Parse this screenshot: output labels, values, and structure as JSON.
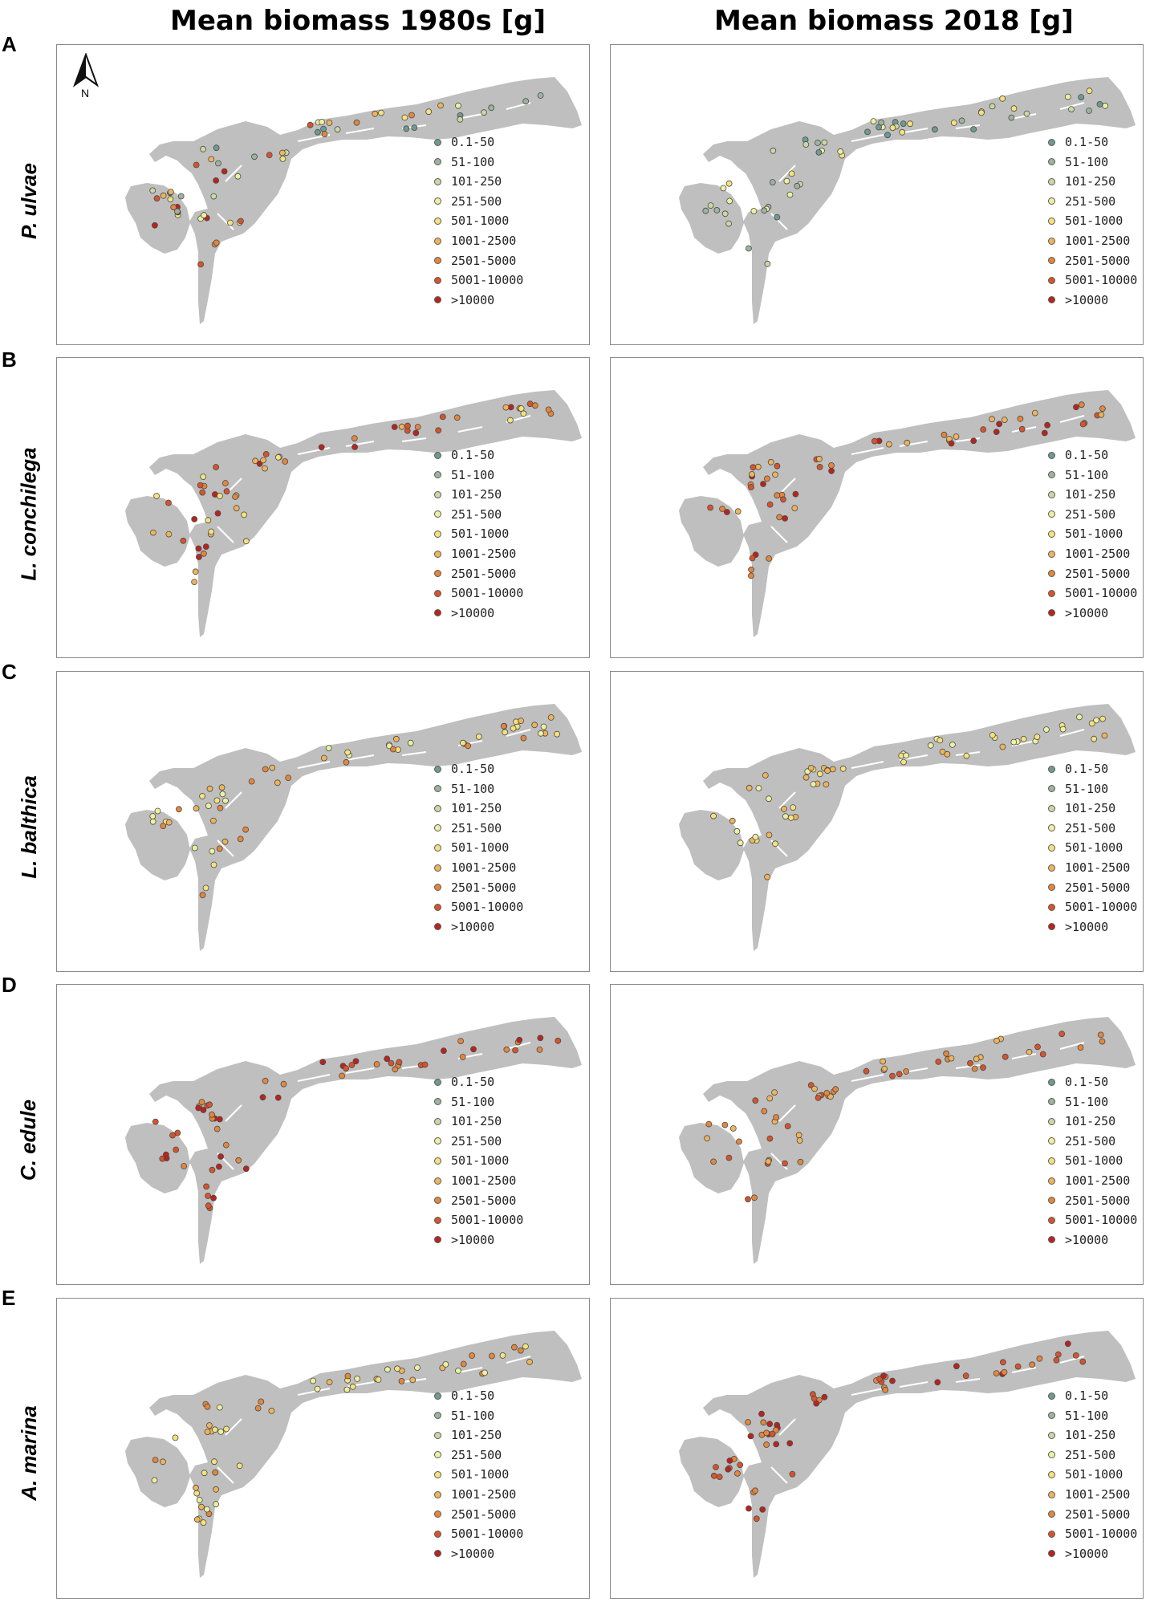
{
  "column_headers": [
    "Mean biomass 1980s [g]",
    "Mean biomass 2018 [g]"
  ],
  "rows": [
    {
      "letter": "A",
      "species": "P. ulvae"
    },
    {
      "letter": "B",
      "species": "L. conchilega"
    },
    {
      "letter": "C",
      "species": "L. balthica"
    },
    {
      "letter": "D",
      "species": "C. edule"
    },
    {
      "letter": "E",
      "species": "A. marina"
    }
  ],
  "north_arrow_label": "N",
  "legend": {
    "classes": [
      {
        "label": "0.1-50",
        "color": "#6f9a92"
      },
      {
        "label": "51-100",
        "color": "#9db39e"
      },
      {
        "label": "101-250",
        "color": "#c9d7a4"
      },
      {
        "label": "251-500",
        "color": "#eef0a0"
      },
      {
        "label": "501-1000",
        "color": "#f5e27c"
      },
      {
        "label": "1001-2500",
        "color": "#eeb45a"
      },
      {
        "label": "2501-5000",
        "color": "#e4863c"
      },
      {
        "label": "5001-10000",
        "color": "#d6542c"
      },
      {
        "label": ">10000",
        "color": "#b8241e"
      }
    ]
  },
  "colors": {
    "land": "#bfbfbf",
    "panel_border": "#8a8a8a",
    "dot_outline": "#4a4a4a"
  },
  "map_panels": [
    {
      "row": "A",
      "period": "1980s",
      "dominant_classes": [
        0,
        1,
        2,
        3,
        4,
        5,
        6,
        7,
        8
      ]
    },
    {
      "row": "A",
      "period": "2018",
      "dominant_classes": [
        0,
        1,
        2,
        3,
        4
      ]
    },
    {
      "row": "B",
      "period": "1980s",
      "dominant_classes": [
        4,
        5,
        6,
        7,
        8
      ]
    },
    {
      "row": "B",
      "period": "2018",
      "dominant_classes": [
        5,
        6,
        7,
        8
      ]
    },
    {
      "row": "C",
      "period": "1980s",
      "dominant_classes": [
        3,
        4,
        5,
        6
      ]
    },
    {
      "row": "C",
      "period": "2018",
      "dominant_classes": [
        3,
        4,
        5
      ]
    },
    {
      "row": "D",
      "period": "1980s",
      "dominant_classes": [
        6,
        7,
        8
      ]
    },
    {
      "row": "D",
      "period": "2018",
      "dominant_classes": [
        5,
        6,
        7
      ]
    },
    {
      "row": "E",
      "period": "1980s",
      "dominant_classes": [
        3,
        4,
        5,
        6
      ]
    },
    {
      "row": "E",
      "period": "2018",
      "dominant_classes": [
        6,
        7,
        8
      ]
    }
  ]
}
